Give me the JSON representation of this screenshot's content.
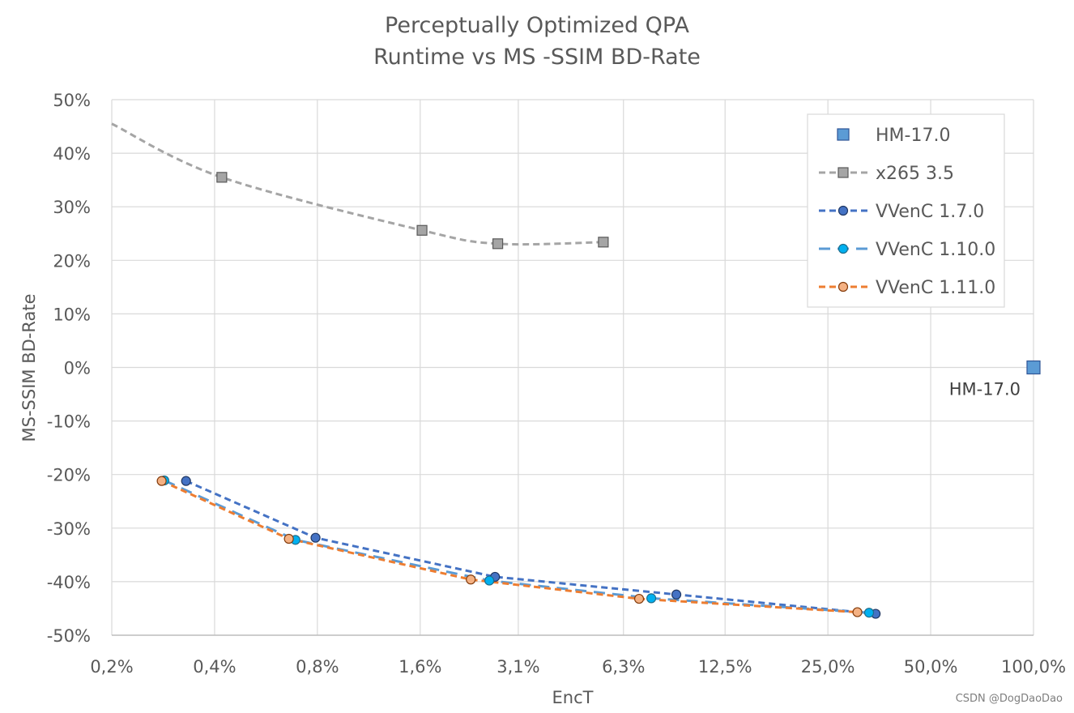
{
  "chart_data": {
    "type": "scatter",
    "title": "Perceptually Optimized QPA",
    "subtitle": "Runtime vs MS -SSIM BD-Rate",
    "xlabel": "EncT",
    "ylabel": "MS-SSIM BD-Rate",
    "x_scale": "log2",
    "xlim": [
      0.2,
      100
    ],
    "ylim": [
      -50,
      50
    ],
    "grid": true,
    "legend_position": "top-right",
    "x_ticks": [
      {
        "value": 0.2,
        "label": "0,2%"
      },
      {
        "value": 0.4,
        "label": "0,4%"
      },
      {
        "value": 0.8,
        "label": "0,8%"
      },
      {
        "value": 1.6,
        "label": "1,6%"
      },
      {
        "value": 3.1,
        "label": "3,1%"
      },
      {
        "value": 6.3,
        "label": "6,3%"
      },
      {
        "value": 12.5,
        "label": "12,5%"
      },
      {
        "value": 25.0,
        "label": "25,0%"
      },
      {
        "value": 50.0,
        "label": "50,0%"
      },
      {
        "value": 100.0,
        "label": "100,0%"
      }
    ],
    "y_ticks": [
      {
        "value": 50,
        "label": "50%"
      },
      {
        "value": 40,
        "label": "40%"
      },
      {
        "value": 30,
        "label": "30%"
      },
      {
        "value": 20,
        "label": "20%"
      },
      {
        "value": 10,
        "label": "10%"
      },
      {
        "value": 0,
        "label": "0%"
      },
      {
        "value": -10,
        "label": "-10%"
      },
      {
        "value": -20,
        "label": "-20%"
      },
      {
        "value": -30,
        "label": "-30%"
      },
      {
        "value": -40,
        "label": "-40%"
      },
      {
        "value": -50,
        "label": "-50%"
      }
    ],
    "series": [
      {
        "name": "HM-17.0",
        "marker": "square-large",
        "line": "none",
        "color": "#5B9BD5",
        "edge": "#2F5597",
        "points": [
          {
            "x": 100.0,
            "y": 0
          }
        ]
      },
      {
        "name": "x265 3.5",
        "marker": "square",
        "line": "dashed",
        "color": "#A5A5A5",
        "edge": "#595959",
        "line_start": {
          "x": 0.2,
          "y": 45.5
        },
        "points": [
          {
            "x": 0.42,
            "y": 35.5
          },
          {
            "x": 1.62,
            "y": 25.6
          },
          {
            "x": 2.7,
            "y": 23.1
          },
          {
            "x": 5.5,
            "y": 23.4
          }
        ]
      },
      {
        "name": "VVenC 1.7.0",
        "marker": "circle",
        "line": "dashed",
        "color": "#4472C4",
        "edge": "#203864",
        "points": [
          {
            "x": 0.33,
            "y": -21.2
          },
          {
            "x": 0.79,
            "y": -31.8
          },
          {
            "x": 2.65,
            "y": -39.1
          },
          {
            "x": 9.0,
            "y": -42.4
          },
          {
            "x": 34.5,
            "y": -46.0
          }
        ]
      },
      {
        "name": "VVenC 1.10.0",
        "marker": "circle",
        "line": "long-dashed",
        "color": "#00B0F0",
        "edge": "#1F6E8C",
        "line_color": "#5B9BD5",
        "points": [
          {
            "x": 0.285,
            "y": -21.1
          },
          {
            "x": 0.69,
            "y": -32.2
          },
          {
            "x": 2.55,
            "y": -39.8
          },
          {
            "x": 7.6,
            "y": -43.1
          },
          {
            "x": 33.0,
            "y": -45.8
          }
        ]
      },
      {
        "name": "VVenC 1.11.0",
        "marker": "circle",
        "line": "dashed",
        "color": "#F4B183",
        "edge": "#843C0C",
        "line_color": "#ED7D31",
        "points": [
          {
            "x": 0.28,
            "y": -21.2
          },
          {
            "x": 0.66,
            "y": -32.0
          },
          {
            "x": 2.25,
            "y": -39.6
          },
          {
            "x": 7.0,
            "y": -43.2
          },
          {
            "x": 30.5,
            "y": -45.7
          }
        ]
      }
    ],
    "annotations": [
      {
        "text": "HM-17.0",
        "x": 100.0,
        "y": 0
      }
    ]
  },
  "watermark": "CSDN @DogDaoDao"
}
